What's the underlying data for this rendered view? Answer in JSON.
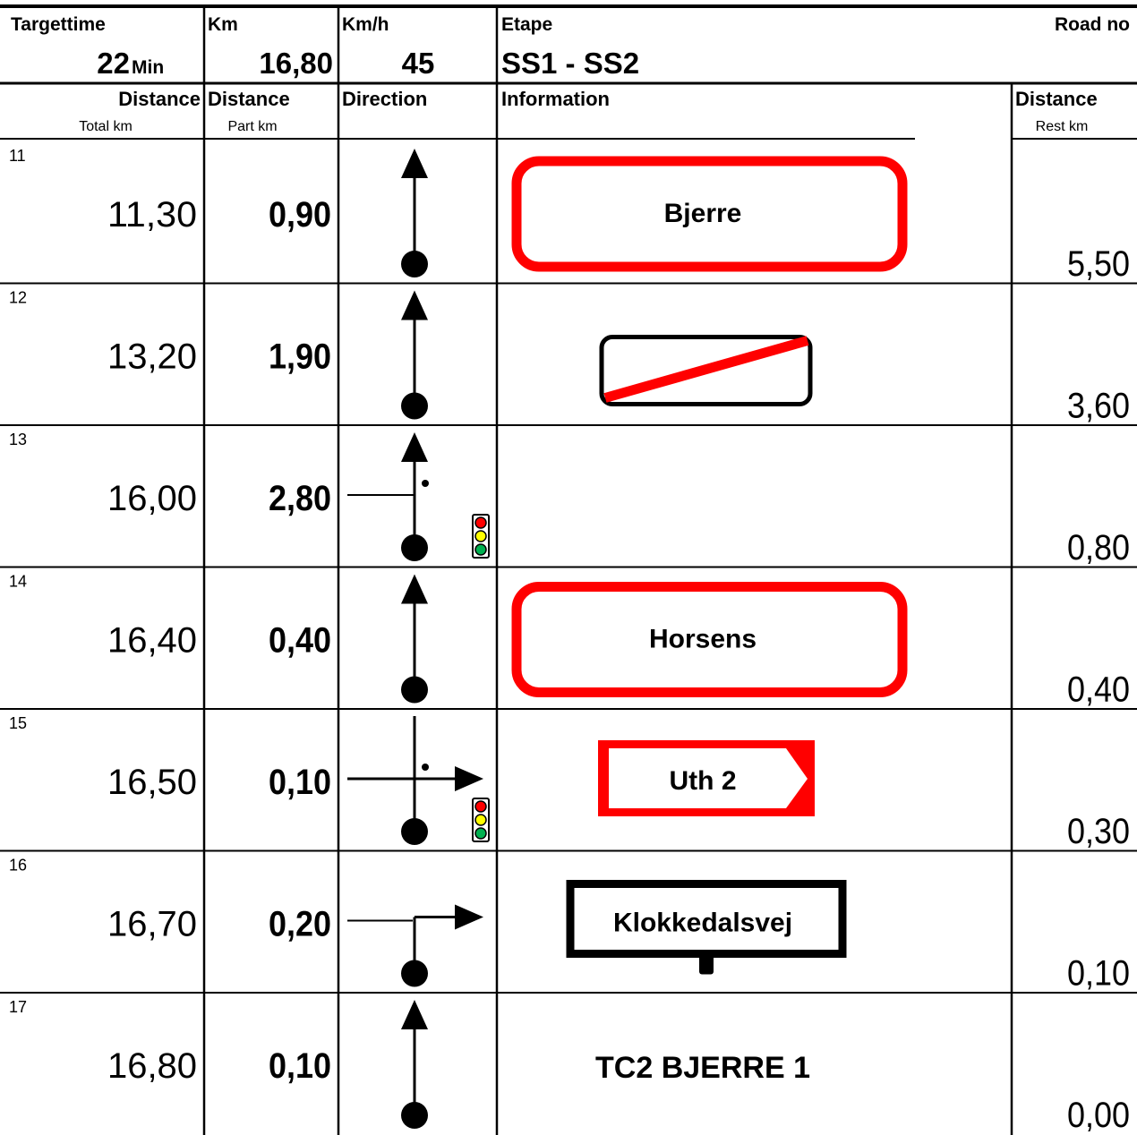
{
  "header": {
    "targettime_label": "Targettime",
    "targettime": "22",
    "targettime_unit": "Min",
    "km_label": "Km",
    "km": "16,80",
    "kmh_label": "Km/h",
    "kmh": "45",
    "etape_label": "Etape",
    "etape": "SS1 - SS2",
    "road_no_label": "Road no"
  },
  "columns": [
    {
      "title": "Distance",
      "subtitle": "Total km"
    },
    {
      "title": "Distance",
      "subtitle": "Part km"
    },
    {
      "title": "Direction"
    },
    {
      "title": "Information"
    },
    {
      "title": "Distance",
      "subtitle": "Rest km"
    }
  ],
  "rows": [
    {
      "number": "11",
      "total": "11,30",
      "part": "0,90",
      "info": "Bjerre",
      "rest": "5,50"
    },
    {
      "number": "12",
      "total": "13,20",
      "part": "1,90",
      "rest": "3,60"
    },
    {
      "number": "13",
      "total": "16,00",
      "part": "2,80",
      "rest": "0,80"
    },
    {
      "number": "14",
      "total": "16,40",
      "part": "0,40",
      "info": "Horsens",
      "rest": "0,40"
    },
    {
      "number": "15",
      "total": "16,50",
      "part": "0,10",
      "info": "Uth 2",
      "rest": "0,30"
    },
    {
      "number": "16",
      "total": "16,70",
      "part": "0,20",
      "info": "Klokkedalsvej",
      "rest": "0,10"
    },
    {
      "number": "17",
      "total": "16,80",
      "part": "0,10",
      "info": "TC2 BJERRE 1",
      "rest": "0,00"
    }
  ]
}
